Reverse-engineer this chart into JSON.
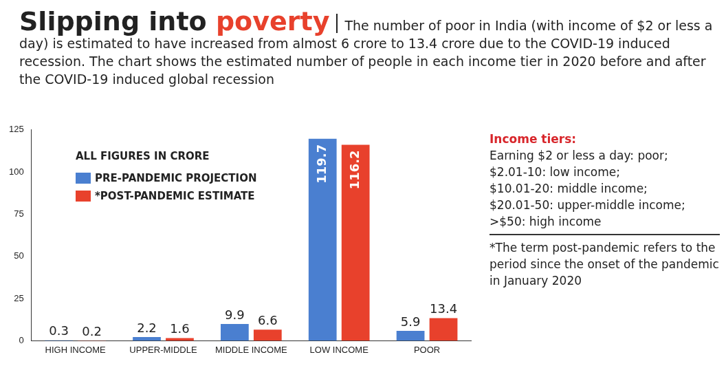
{
  "chart_data": {
    "type": "bar",
    "title": "Slipping into poverty",
    "subtitle": "The number of poor in India (with income of $2 or less a day) is estimated to have increased from almost 6 crore to 13.4 crore due to the COVID-19 induced recession. The chart shows the estimated number of people in each income tier in 2020 before and after the COVID-19 induced global recession",
    "categories": [
      "HIGH INCOME",
      "UPPER-MIDDLE",
      "MIDDLE INCOME",
      "LOW INCOME",
      "POOR"
    ],
    "series": [
      {
        "name": "PRE-PANDEMIC PROJECTION",
        "color": "#4a7fd0",
        "values": [
          0.3,
          2.2,
          9.9,
          119.7,
          5.9
        ]
      },
      {
        "name": "*POST-PANDEMIC ESTIMATE",
        "color": "#e8412c",
        "values": [
          0.2,
          1.6,
          6.6,
          116.2,
          13.4
        ]
      }
    ],
    "legend_title": "ALL FIGURES IN CRORE",
    "legend": "top left",
    "data_labels": true,
    "grid": false,
    "ylim": [
      0,
      125
    ],
    "yticks": [
      0,
      25,
      50,
      75,
      100,
      125
    ],
    "annotations": [
      "Income tiers:",
      "Earning $2 or less a day: poor;",
      "$2.01-10: low income;",
      "$10.01-20: middle income;",
      "$20.01-50: upper-middle income;",
      ">$50: high income",
      "*The term post-pandemic refers to the period since the onset of the pandemic in January 2020"
    ]
  }
}
